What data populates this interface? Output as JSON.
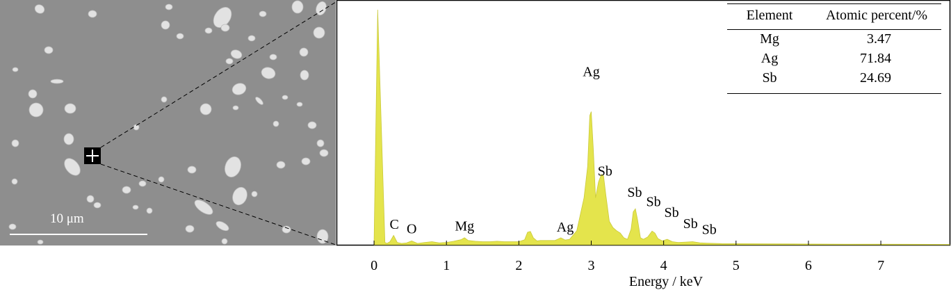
{
  "sem_image": {
    "scale_bar_label": "10 μm",
    "background_color": "#8e8e8e"
  },
  "chart_data": {
    "type": "line",
    "x": [
      0.0,
      0.05,
      0.15,
      0.18,
      0.22,
      0.27,
      0.32,
      0.38,
      0.45,
      0.52,
      0.6,
      0.7,
      0.8,
      0.9,
      1.0,
      1.1,
      1.2,
      1.25,
      1.3,
      1.4,
      1.5,
      1.6,
      1.7,
      1.8,
      1.9,
      2.0,
      2.08,
      2.12,
      2.16,
      2.2,
      2.25,
      2.3,
      2.4,
      2.5,
      2.58,
      2.64,
      2.7,
      2.8,
      2.9,
      2.95,
      2.98,
      3.0,
      3.03,
      3.06,
      3.1,
      3.14,
      3.17,
      3.2,
      3.25,
      3.3,
      3.35,
      3.4,
      3.45,
      3.5,
      3.55,
      3.58,
      3.61,
      3.64,
      3.68,
      3.72,
      3.78,
      3.84,
      3.88,
      3.92,
      3.98,
      4.05,
      4.12,
      4.2,
      4.3,
      4.4,
      4.5,
      4.6,
      4.8,
      5.0,
      5.5,
      6.0,
      6.5,
      7.0,
      7.5,
      7.95
    ],
    "series": [
      {
        "values": [
          50,
          3000,
          30,
          18,
          40,
          120,
          30,
          18,
          24,
          50,
          18,
          30,
          40,
          24,
          30,
          45,
          65,
          90,
          55,
          45,
          40,
          40,
          45,
          40,
          40,
          40,
          65,
          160,
          170,
          90,
          50,
          55,
          55,
          55,
          90,
          60,
          70,
          180,
          600,
          1000,
          1650,
          1700,
          1200,
          600,
          800,
          900,
          880,
          650,
          300,
          220,
          180,
          150,
          90,
          70,
          200,
          420,
          460,
          320,
          90,
          70,
          100,
          175,
          150,
          80,
          50,
          70,
          40,
          30,
          35,
          40,
          25,
          20,
          15,
          14,
          12,
          10,
          8,
          7,
          6,
          4
        ]
      }
    ],
    "xlabel": "Energy / keV",
    "ylabel": "",
    "xlim": [
      -0.5,
      7.95
    ],
    "ylim": [
      0,
      3000
    ],
    "xticks": [
      0,
      1,
      2,
      3,
      4,
      5,
      6,
      7
    ],
    "grid": false,
    "fill_color": "#e4e44c",
    "annotations": [
      {
        "text": "C",
        "x": 0.28,
        "y": 150
      },
      {
        "text": "O",
        "x": 0.52,
        "y": 95
      },
      {
        "text": "Mg",
        "x": 1.25,
        "y": 130
      },
      {
        "text": "Ag",
        "x": 2.64,
        "y": 115
      },
      {
        "text": "Ag",
        "x": 3.0,
        "y": 2100
      },
      {
        "text": "Sb",
        "x": 3.19,
        "y": 830
      },
      {
        "text": "Sb",
        "x": 3.6,
        "y": 560
      },
      {
        "text": "Sb",
        "x": 3.86,
        "y": 440
      },
      {
        "text": "Sb",
        "x": 4.11,
        "y": 300
      },
      {
        "text": "Sb",
        "x": 4.37,
        "y": 160
      },
      {
        "text": "Sb",
        "x": 4.63,
        "y": 85
      }
    ]
  },
  "table": {
    "headers": [
      "Element",
      "Atomic percent/%"
    ],
    "rows": [
      [
        "Mg",
        "3.47"
      ],
      [
        "Ag",
        "71.84"
      ],
      [
        "Sb",
        "24.69"
      ]
    ]
  }
}
